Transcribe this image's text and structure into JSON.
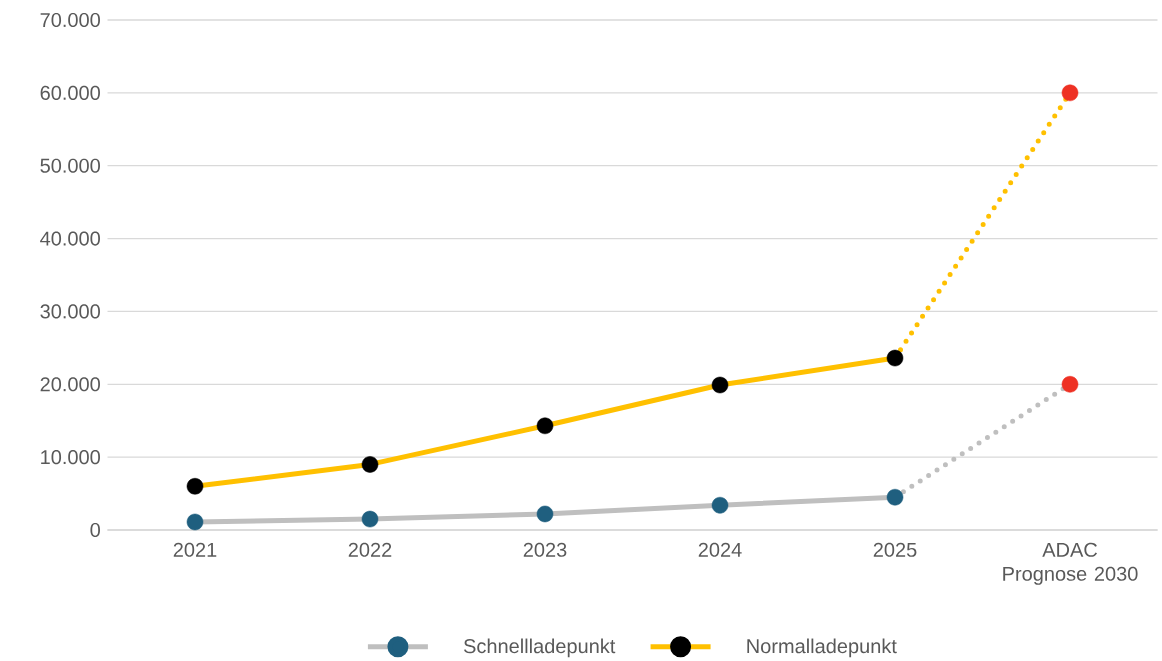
{
  "chart_data": {
    "type": "line",
    "categories": [
      "2021",
      "2022",
      "2023",
      "2024",
      "2025",
      "ADAC Prognose 2030"
    ],
    "ylim": [
      0,
      70000
    ],
    "yticks": [
      0,
      {
        "value": 10000,
        "label": "10.000"
      },
      {
        "value": 20000,
        "label": "20.000"
      },
      {
        "value": 30000,
        "label": "30.000"
      },
      {
        "value": 40000,
        "label": "40.000"
      },
      {
        "value": 50000,
        "label": "50.000"
      },
      {
        "value": 60000,
        "label": "60.000"
      },
      {
        "value": 70000,
        "label": "70.000"
      }
    ],
    "grid": "y",
    "legend": "bottom",
    "marker": "circle",
    "line_style": "solid",
    "series": [
      {
        "name": "Schnellladepunkt",
        "color": "#bfbfbf",
        "values": [
          1100,
          1500,
          2200,
          3400,
          4500,
          null
        ],
        "colors": [
          "#1f5f7f",
          "#1f5f7f",
          "#1f5f7f",
          "#1f5f7f",
          "#1f5f7f",
          null
        ]
      },
      {
        "name": "Normalladepunkt",
        "color": "#ffc000",
        "values": [
          6000,
          9000,
          14300,
          19900,
          23600,
          null
        ],
        "colors": [
          "#000000",
          "#000000",
          "#000000",
          "#000000",
          "#000000",
          null
        ]
      },
      {
        "color": "#bfbfbf",
        "values": [
          null,
          null,
          null,
          null,
          4500,
          20000
        ],
        "line_style": "dotted",
        "colors": [
          null,
          null,
          null,
          null,
          null,
          "#ee3124"
        ]
      },
      {
        "color": "#ffc000",
        "values": [
          null,
          null,
          null,
          null,
          23600,
          60000
        ],
        "line_style": "dotted",
        "colors": [
          null,
          null,
          null,
          null,
          null,
          "#ee3124"
        ]
      }
    ]
  }
}
